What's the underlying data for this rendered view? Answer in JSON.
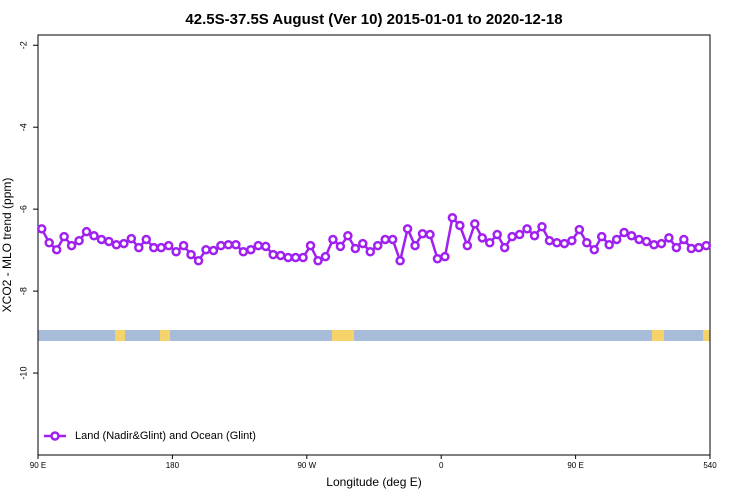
{
  "chart_data": {
    "type": "line",
    "title": "42.5S-37.5S August (Ver 10)   2015-01-01 to 2020-12-18",
    "xlabel": "Longitude (deg E)",
    "ylabel": "XCO2 - MLO trend (ppm)",
    "xlim": [
      90,
      540
    ],
    "ylim": [
      -12,
      -1.75
    ],
    "xticks": [
      {
        "value": 90,
        "label": "90 E"
      },
      180,
      {
        "value": 270,
        "label": "90 W"
      },
      {
        "value": 360,
        "label": "0"
      },
      {
        "value": 450,
        "label": "90 E"
      },
      540
    ],
    "yticks": [
      -2,
      -4,
      -6,
      -8,
      -10
    ],
    "legend": "bottom-left",
    "x": [
      92.5,
      97.5,
      102.5,
      107.5,
      112.5,
      117.5,
      122.5,
      127.5,
      132.5,
      137.5,
      142.5,
      147.5,
      152.5,
      157.5,
      162.5,
      167.5,
      172.5,
      177.5,
      182.5,
      187.5,
      192.5,
      197.5,
      202.5,
      207.5,
      212.5,
      217.5,
      222.5,
      227.5,
      232.5,
      237.5,
      242.5,
      247.5,
      252.5,
      257.5,
      262.5,
      267.5,
      272.5,
      277.5,
      282.5,
      287.5,
      292.5,
      297.5,
      302.5,
      307.5,
      312.5,
      317.5,
      322.5,
      327.5,
      332.5,
      337.5,
      342.5,
      347.5,
      352.5,
      357.5,
      362.5,
      367.5,
      372.5,
      377.5,
      382.5,
      387.5,
      392.5,
      397.5,
      402.5,
      407.5,
      412.5,
      417.5,
      422.5,
      427.5,
      432.5,
      437.5,
      442.5,
      447.5,
      452.5,
      457.5,
      462.5,
      467.5,
      472.5,
      477.5,
      482.5,
      487.5,
      492.5,
      497.5,
      502.5,
      507.5,
      512.5,
      517.5,
      522.5,
      527.5,
      532.5,
      537.5
    ],
    "series": [
      {
        "name": "Land (Nadir&Glint) and Ocean (Glint)",
        "color": "#a020f0",
        "values": [
          -6.48,
          -6.82,
          -6.99,
          -6.67,
          -6.89,
          -6.77,
          -6.55,
          -6.65,
          -6.74,
          -6.79,
          -6.87,
          -6.84,
          -6.72,
          -6.94,
          -6.74,
          -6.94,
          -6.94,
          -6.89,
          -7.04,
          -6.89,
          -7.11,
          -7.26,
          -6.99,
          -7.01,
          -6.89,
          -6.87,
          -6.87,
          -7.04,
          -6.99,
          -6.89,
          -6.91,
          -7.11,
          -7.13,
          -7.18,
          -7.18,
          -7.18,
          -6.89,
          -7.26,
          -7.16,
          -6.74,
          -6.91,
          -6.65,
          -6.96,
          -6.84,
          -7.04,
          -6.89,
          -6.74,
          -6.74,
          -7.26,
          -6.48,
          -6.89,
          -6.6,
          -6.62,
          -7.21,
          -7.16,
          -6.21,
          -6.4,
          -6.89,
          -6.36,
          -6.7,
          -6.82,
          -6.62,
          -6.94,
          -6.67,
          -6.62,
          -6.48,
          -6.65,
          -6.43,
          -6.77,
          -6.82,
          -6.84,
          -6.77,
          -6.5,
          -6.82,
          -6.99,
          -6.67,
          -6.87,
          -6.74,
          -6.57,
          -6.65,
          -6.74,
          -6.79,
          -6.87,
          -6.84,
          -6.7,
          -6.94,
          -6.74,
          -6.96,
          -6.94,
          -6.89
        ]
      }
    ]
  }
}
